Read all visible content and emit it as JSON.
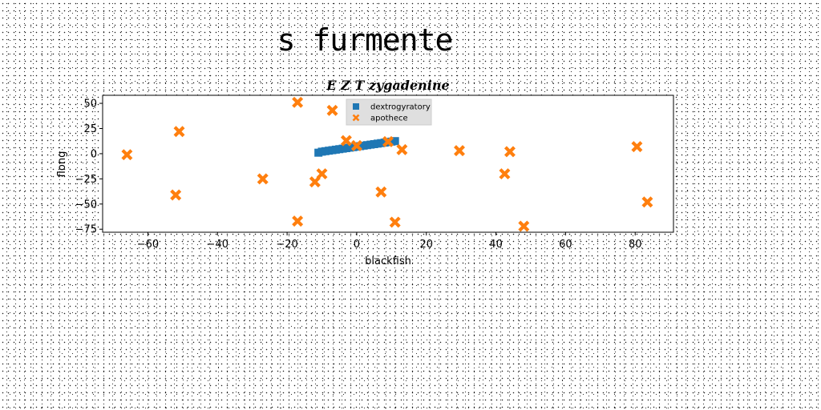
{
  "header": {
    "title": "s furmente"
  },
  "chart_data": {
    "type": "scatter",
    "title": "E Z T zygadenine",
    "xlabel": "blackfish",
    "ylabel": "flong",
    "xlim": [
      -73,
      91
    ],
    "ylim": [
      -78,
      58
    ],
    "xticks": [
      -60,
      -40,
      -20,
      0,
      20,
      40,
      60,
      80
    ],
    "yticks": [
      -75,
      -50,
      -25,
      0,
      25,
      50
    ],
    "grid": false,
    "legend_position": "upper-center",
    "series": [
      {
        "name": "dextrogyratory",
        "marker": "square",
        "color": "#1f77b4",
        "x": [
          -11,
          -10,
          -9,
          -8,
          -7,
          -6,
          -5,
          -4,
          -3,
          -2,
          -1,
          0,
          1,
          2,
          3,
          4,
          5,
          6,
          7,
          8,
          9,
          10,
          11
        ],
        "y": [
          1,
          2,
          2.5,
          3,
          3.5,
          4,
          4.5,
          5,
          5.5,
          6,
          6.5,
          7,
          7.5,
          8,
          8.5,
          9,
          9.5,
          10,
          10.5,
          11,
          11.5,
          12,
          12.5
        ]
      },
      {
        "name": "apothece",
        "marker": "x",
        "color": "#ff7f0e",
        "x": [
          -66,
          -51,
          -52,
          -27,
          -17,
          -17,
          -12,
          -10,
          -7,
          -3,
          0,
          7,
          9,
          11,
          13,
          29.5,
          42.5,
          44,
          48,
          80.5,
          83.5
        ],
        "y": [
          -1,
          22,
          -41,
          -25,
          51,
          -67,
          -28,
          -20,
          43,
          13,
          8,
          -38,
          12,
          -68,
          4,
          3,
          -20,
          2,
          -72,
          7,
          -48
        ]
      }
    ]
  }
}
